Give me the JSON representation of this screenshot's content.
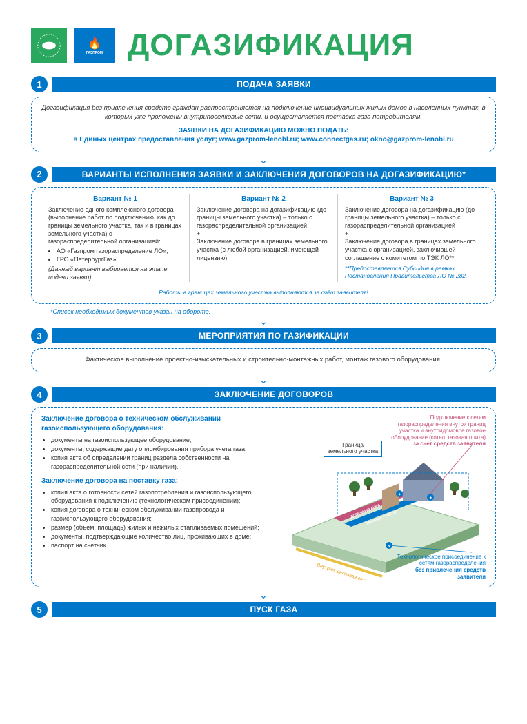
{
  "title": "ДОГАЗИФИКАЦИЯ",
  "logo_blue_text": "ГАЗПРОМ",
  "colors": {
    "brand_blue": "#0077c8",
    "brand_green": "#2aa860",
    "accent_pink": "#c4527a"
  },
  "s1": {
    "num": "1",
    "title": "ПОДАЧА ЗАЯВКИ",
    "intro": "Догазификация без привлечения средств граждан распространяется на подключение индивидуальных жилых домов в населенных пунктах, в которых уже проложены внутрипоселковые сети, и осуществляется поставка газа потребителям.",
    "h1": "ЗАЯВКИ НА ДОГАЗИФИКАЦИЮ МОЖНО ПОДАТЬ:",
    "h2": "в Единых центрах предоставления услуг; www.gazprom-lenobl.ru; www.connectgas.ru; okno@gazprom-lenobl.ru"
  },
  "s2": {
    "num": "2",
    "title": "ВАРИАНТЫ ИСПОЛНЕНИЯ ЗАЯВКИ И ЗАКЛЮЧЕНИЯ ДОГОВОРОВ НА ДОГАЗИФИКАЦИЮ*",
    "v1": {
      "title": "Вариант № 1",
      "text": "Заключение одного комплексного договора (выполнение работ по подключению, как до границы земельного участка, так и в границах земельного участка) с газораспределительной организацией:",
      "li1": "АО «Газпром газораспределение ЛО»;",
      "li2": "ГРО «ПетербургГаз».",
      "italic": "(Данный вариант выбирается на этапе подачи заявки)"
    },
    "v2": {
      "title": "Вариант № 2",
      "text": "Заключение договора на догазификацию (до границы земельного участка) – только с газораспределительной организацией",
      "plus": "+",
      "text2": "Заключение договора в границах земельного участка (с любой организацией, имеющей лицензию)."
    },
    "v3": {
      "title": "Вариант № 3",
      "text": "Заключение договора на догазификацию (до границы земельного участка) – только с газораспределительной организацией",
      "plus": "+",
      "text2": "Заключение договора в границах земельного участка с организацией, заключившей соглашение с комитетом по ТЭК ЛО**.",
      "note": "**Предоставляется Субсидия в рамках Постановления Правительства ЛО № 282."
    },
    "footnote": "Работы в границах земельного участка выполняются за счёт заявителя!",
    "below": "*Список необходимых документов указан на обороте."
  },
  "s3": {
    "num": "3",
    "title": "МЕРОПРИЯТИЯ ПО ГАЗИФИКАЦИИ",
    "text": "Фактическое выполнение проектно-изыскательных и строительно-монтажных работ, монтаж газового оборудования."
  },
  "s4": {
    "num": "4",
    "title": "ЗАКЛЮЧЕНИЕ ДОГОВОРОВ",
    "h1": "Заключение договора о техническом обслуживании газоиспользующего оборудования:",
    "l1": [
      "документы на газоиспользующее оборудование;",
      "документы, содержащие дату опломбирования прибора учета газа;",
      "копия акта об определении границ раздела собственности на газораспределительной сети (при наличии)."
    ],
    "h2": "Заключение договора на поставку газа:",
    "l2": [
      "копия акта о готовности сетей газопотребления и газоиспользующего оборудования к подключению (технологическом присоединении);",
      "копия договора о техническом обслуживании газопровода и газоиспользующего оборудования;",
      "размер (объем, площадь) жилых и нежилых отапливаемых помещений;",
      "документы, подтверждающие количество лиц, проживающих в доме;",
      "паспорт на счетчик."
    ],
    "diagram": {
      "boundary": "Граница\nземельного участка",
      "top": "Подключение к сетям газораспределения внутри границ участка и внутридомовое газовое оборудование (котел, газовая плита)",
      "top_bold": "за счет средств заявителя",
      "bottom": "Технологическое присоединение к сетям газораспределения",
      "bottom_bold": "без привлечения средств заявителя",
      "strip1": "ДОГАЗИФИКАЦИЯ",
      "strip2": "ГРАНИЦА УЧАСТКА",
      "pipe": "Внутрипоселковая сеть"
    }
  },
  "s5": {
    "num": "5",
    "title": "ПУСК ГАЗА"
  }
}
